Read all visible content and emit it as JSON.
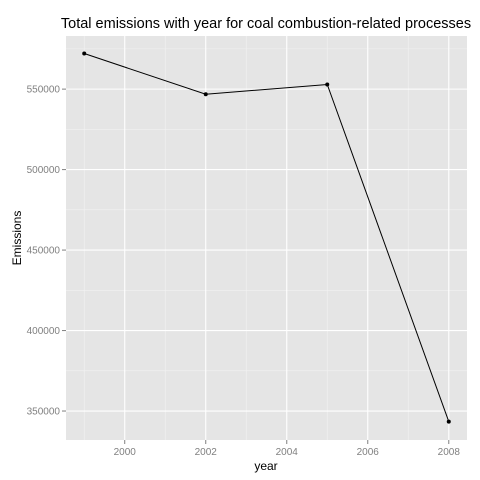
{
  "chart_data": {
    "type": "line",
    "title": "Total emissions with year for coal combustion-related processes",
    "xlabel": "year",
    "ylabel": "Emissions",
    "x": [
      1999,
      2002,
      2005,
      2008
    ],
    "series": [
      {
        "values": [
          572126,
          546789,
          552881,
          343432
        ]
      }
    ],
    "xlim": [
      1998.55,
      2008.45
    ],
    "ylim": [
      332000,
      583000
    ],
    "x_ticks": [
      "2000",
      "2002",
      "2004",
      "2006",
      "2008"
    ],
    "y_ticks": [
      "350000",
      "400000",
      "450000",
      "500000",
      "550000"
    ],
    "grid": true,
    "colors": {
      "panel": "#e5e5e5",
      "grid_major": "#ffffff",
      "grid_minor": "#f2f2f2",
      "line": "#000000"
    }
  }
}
